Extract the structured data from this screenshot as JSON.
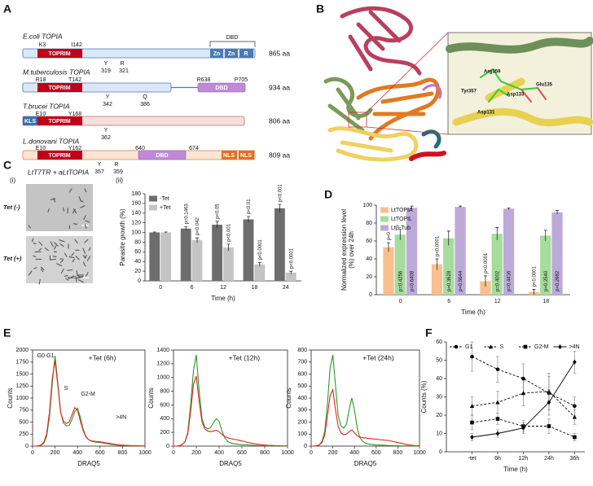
{
  "panel_labels": [
    "A",
    "B",
    "C",
    "D",
    "E",
    "F"
  ],
  "panel_a": {
    "proteins": [
      {
        "name": "E.coli TOPIA",
        "length": "865 aa",
        "domains": [
          "TOPRIM",
          "Zn",
          "Zn",
          "R",
          "DBD"
        ],
        "sites": [
          "K3",
          "I142",
          "Y",
          "319",
          "R",
          "321"
        ]
      },
      {
        "name": "M.tuberculosis TOPIA",
        "length": "934 aa",
        "domains": [
          "TOPRIM",
          "DBD"
        ],
        "sites": [
          "R18",
          "T142",
          "R638",
          "P705",
          "Y",
          "342",
          "Q",
          "386"
        ]
      },
      {
        "name": "T.brucei TOPIA",
        "length": "806 aa",
        "domains": [
          "KLS",
          "TOPRIM"
        ],
        "sites": [
          "E10",
          "Y168",
          "Y",
          "362"
        ]
      },
      {
        "name": "L.donovani TOPIA",
        "length": "809 aa",
        "domains": [
          "TOPRIM",
          "DBD",
          "NLS",
          "NLS"
        ],
        "sites": [
          "E10",
          "Y162",
          "640",
          "674",
          "Y",
          "R",
          "357",
          "359"
        ]
      }
    ]
  },
  "panel_b": {
    "residues": [
      "Arg359",
      "Asp133",
      "Glu135",
      "Tyr357",
      "Asp131"
    ]
  },
  "panel_c": {
    "title": "LtT7TR + aLtTOPIA",
    "image_label": "(i)",
    "chart_label": "(ii)",
    "rows": [
      "Tet (-)",
      "Tet (+)"
    ]
  },
  "chart_data": [
    {
      "type": "bar",
      "xlabel": "Time (h)",
      "ylabel": "Parasite growth (%)",
      "categories": [
        "0",
        "6",
        "12",
        "18",
        "24"
      ],
      "ylim": [
        0,
        180
      ],
      "yticks": [
        0,
        20,
        40,
        60,
        80,
        100,
        120,
        140,
        160,
        180
      ],
      "legend": "upper left",
      "series": [
        {
          "name": "-Tet",
          "color": "#6d6d6d",
          "values": [
            100,
            108,
            116,
            127,
            150
          ],
          "errors": [
            1,
            4,
            7,
            6,
            8
          ],
          "annotations": [
            null,
            "p=0.1463",
            "p<0.05",
            "p<0.01",
            "p<0.001"
          ],
          "label_position": "above"
        },
        {
          "name": "+Tet",
          "color": "#c4c4c4",
          "values": [
            100,
            84,
            69,
            34,
            17
          ],
          "errors": [
            1,
            5,
            7,
            4,
            3
          ],
          "annotations": [
            null,
            "p=0.042",
            "p<0.001",
            "p<0.0001",
            "p<0.0001"
          ],
          "label_position": "above"
        }
      ]
    },
    {
      "type": "bar",
      "xlabel": "Time (h)",
      "ylabel": [
        "Normalized expression level",
        "(%) over 24h"
      ],
      "categories": [
        "0",
        "6",
        "12",
        "18"
      ],
      "ylim": [
        0,
        100
      ],
      "yticks": [
        0,
        20,
        40,
        60,
        80,
        100
      ],
      "legend": "upper left",
      "series": [
        {
          "name": "LtTOPIA",
          "color": "#f7c08e",
          "values": [
            53,
            34,
            15,
            3
          ],
          "errors": [
            5,
            6,
            6,
            3
          ],
          "annotations": [
            "p=0",
            "p<0.0001",
            "p<0.0001",
            "p<0.0001"
          ],
          "label_position": "above"
        },
        {
          "name": "LtTOPIL",
          "color": "#a6dc9c",
          "values": [
            67,
            63,
            68,
            66
          ],
          "errors": [
            6,
            8,
            7,
            6
          ],
          "annotations": [
            "p=0.4256",
            "p=0.3628",
            "p=0.4002",
            "p=0.2540"
          ],
          "label_position": "inside"
        },
        {
          "name": "Ltβ-Tub",
          "color": "#bcaad9",
          "values": [
            97,
            98,
            96,
            92
          ],
          "errors": [
            2,
            1,
            1,
            2
          ],
          "annotations": [
            "p=0.6408",
            "p=0.5644",
            "p=0.4416",
            "p=0.2682"
          ],
          "label_position": "inside"
        }
      ]
    },
    {
      "type": "line",
      "title": "+Tet (6h)",
      "xlabel": "DRAQ5",
      "ylabel": "Counts",
      "x": [
        0,
        25,
        50,
        75,
        100,
        125,
        150,
        175,
        200,
        225,
        250,
        275,
        300,
        325,
        350,
        375,
        400,
        425,
        450,
        475,
        500,
        525,
        550,
        575,
        600,
        625,
        650,
        675,
        700,
        725,
        750,
        775,
        800,
        825,
        850,
        875,
        900,
        925,
        950,
        975,
        1000
      ],
      "xlim": [
        0,
        1000
      ],
      "xticks": [
        0,
        200,
        400,
        600,
        800,
        1000
      ],
      "ylim": [
        0,
        2000
      ],
      "yticks": [
        0,
        250,
        500,
        750,
        1000,
        1250,
        1500,
        1750,
        2000
      ],
      "annotations": [
        "G0-G1",
        "S",
        "G2-M",
        ">4N"
      ],
      "series": [
        {
          "color": "#2a9a2a",
          "values": [
            0,
            0,
            5,
            20,
            60,
            200,
            600,
            1300,
            1880,
            1300,
            700,
            480,
            420,
            430,
            550,
            720,
            790,
            600,
            350,
            200,
            130,
            100,
            90,
            80,
            75,
            65,
            55,
            45,
            35,
            28,
            22,
            18,
            15,
            12,
            10,
            8,
            6,
            5,
            4,
            3,
            2
          ]
        },
        {
          "color": "#e3231f",
          "values": [
            0,
            0,
            5,
            25,
            80,
            250,
            700,
            1400,
            1780,
            1250,
            700,
            520,
            470,
            500,
            650,
            800,
            750,
            520,
            320,
            190,
            130,
            110,
            100,
            95,
            90,
            80,
            70,
            60,
            50,
            40,
            32,
            25,
            20,
            16,
            13,
            10,
            8,
            6,
            5,
            4,
            3
          ]
        }
      ]
    },
    {
      "type": "line",
      "title": "+Tet (12h)",
      "xlabel": "DRAQ5",
      "ylabel": "Counts",
      "x": [
        0,
        25,
        50,
        75,
        100,
        125,
        150,
        175,
        200,
        225,
        250,
        275,
        300,
        325,
        350,
        375,
        400,
        425,
        450,
        475,
        500,
        525,
        550,
        575,
        600,
        625,
        650,
        675,
        700,
        725,
        750,
        775,
        800,
        825,
        850,
        875,
        900,
        925,
        950,
        975,
        1000
      ],
      "xlim": [
        0,
        1000
      ],
      "xticks": [
        0,
        200,
        400,
        600,
        800,
        1000
      ],
      "ylim": [
        0,
        1400
      ],
      "yticks": [
        0,
        200,
        400,
        600,
        800,
        1000,
        1200,
        1400
      ],
      "series": [
        {
          "color": "#2a9a2a",
          "values": [
            0,
            0,
            5,
            20,
            60,
            200,
            600,
            1100,
            1330,
            800,
            400,
            280,
            250,
            270,
            340,
            400,
            360,
            220,
            120,
            70,
            45,
            35,
            30,
            25,
            22,
            20,
            18,
            15,
            12,
            10,
            8,
            6,
            5,
            4,
            3,
            3,
            2,
            2,
            1,
            1,
            1
          ]
        },
        {
          "color": "#e3231f",
          "values": [
            0,
            0,
            5,
            20,
            60,
            180,
            500,
            900,
            1020,
            650,
            350,
            250,
            220,
            210,
            220,
            230,
            210,
            170,
            140,
            120,
            110,
            100,
            95,
            85,
            75,
            65,
            55,
            45,
            38,
            30,
            25,
            20,
            16,
            12,
            10,
            8,
            6,
            5,
            4,
            3,
            2
          ]
        }
      ]
    },
    {
      "type": "line",
      "title": "+Tet (24h)",
      "xlabel": "DRAQ5",
      "ylabel": "Counts",
      "x": [
        0,
        25,
        50,
        75,
        100,
        125,
        150,
        175,
        200,
        225,
        250,
        275,
        300,
        325,
        350,
        375,
        400,
        425,
        450,
        475,
        500,
        525,
        550,
        575,
        600,
        625,
        650,
        675,
        700,
        725,
        750,
        775,
        800,
        825,
        850,
        875,
        900,
        925,
        950,
        975,
        1000
      ],
      "xlim": [
        0,
        1000
      ],
      "xticks": [
        0,
        200,
        400,
        600,
        800,
        1000
      ],
      "ylim": [
        0,
        800
      ],
      "yticks": [
        0,
        100,
        200,
        300,
        400,
        500,
        600,
        700,
        800
      ],
      "series": [
        {
          "color": "#2a9a2a",
          "values": [
            0,
            0,
            3,
            10,
            40,
            120,
            350,
            650,
            760,
            500,
            250,
            170,
            150,
            180,
            300,
            400,
            300,
            150,
            70,
            40,
            25,
            18,
            15,
            12,
            10,
            9,
            8,
            7,
            6,
            5,
            4,
            3,
            3,
            2,
            2,
            2,
            1,
            1,
            1,
            1,
            1
          ]
        },
        {
          "color": "#e3231f",
          "values": [
            0,
            0,
            3,
            10,
            30,
            90,
            250,
            420,
            470,
            300,
            160,
            110,
            95,
            100,
            120,
            135,
            110,
            85,
            75,
            70,
            68,
            65,
            62,
            60,
            58,
            55,
            52,
            50,
            48,
            45,
            40,
            35,
            30,
            25,
            20,
            15,
            10,
            8,
            5,
            3,
            2
          ]
        }
      ]
    },
    {
      "type": "line",
      "xlabel": "Time (h)",
      "ylabel": "Counts (%)",
      "categories": [
        "-tet",
        "6h",
        "12h",
        "24h",
        "36h"
      ],
      "ylim": [
        0,
        60
      ],
      "yticks": [
        0,
        10,
        20,
        30,
        40,
        50,
        60
      ],
      "legend": "upper center",
      "series": [
        {
          "name": "G1",
          "color": "#000000",
          "marker": "circle",
          "dashed": true,
          "values": [
            52,
            45,
            40,
            32,
            25
          ],
          "errors": [
            8,
            7,
            8,
            9,
            5
          ]
        },
        {
          "name": "S",
          "color": "#000000",
          "marker": "triangle",
          "dashed": true,
          "values": [
            25,
            27,
            32,
            33,
            19
          ],
          "errors": [
            5,
            6,
            7,
            10,
            4
          ]
        },
        {
          "name": "G2-M",
          "color": "#000000",
          "marker": "square",
          "dashed": true,
          "values": [
            16,
            18,
            14,
            14,
            8
          ],
          "errors": [
            4,
            3,
            3,
            4,
            2
          ]
        },
        {
          "name": ">4N",
          "color": "#000000",
          "marker": "diamond",
          "dashed": false,
          "values": [
            8,
            10,
            13,
            27,
            49
          ],
          "errors": [
            2,
            2,
            3,
            7,
            6
          ]
        }
      ]
    }
  ]
}
